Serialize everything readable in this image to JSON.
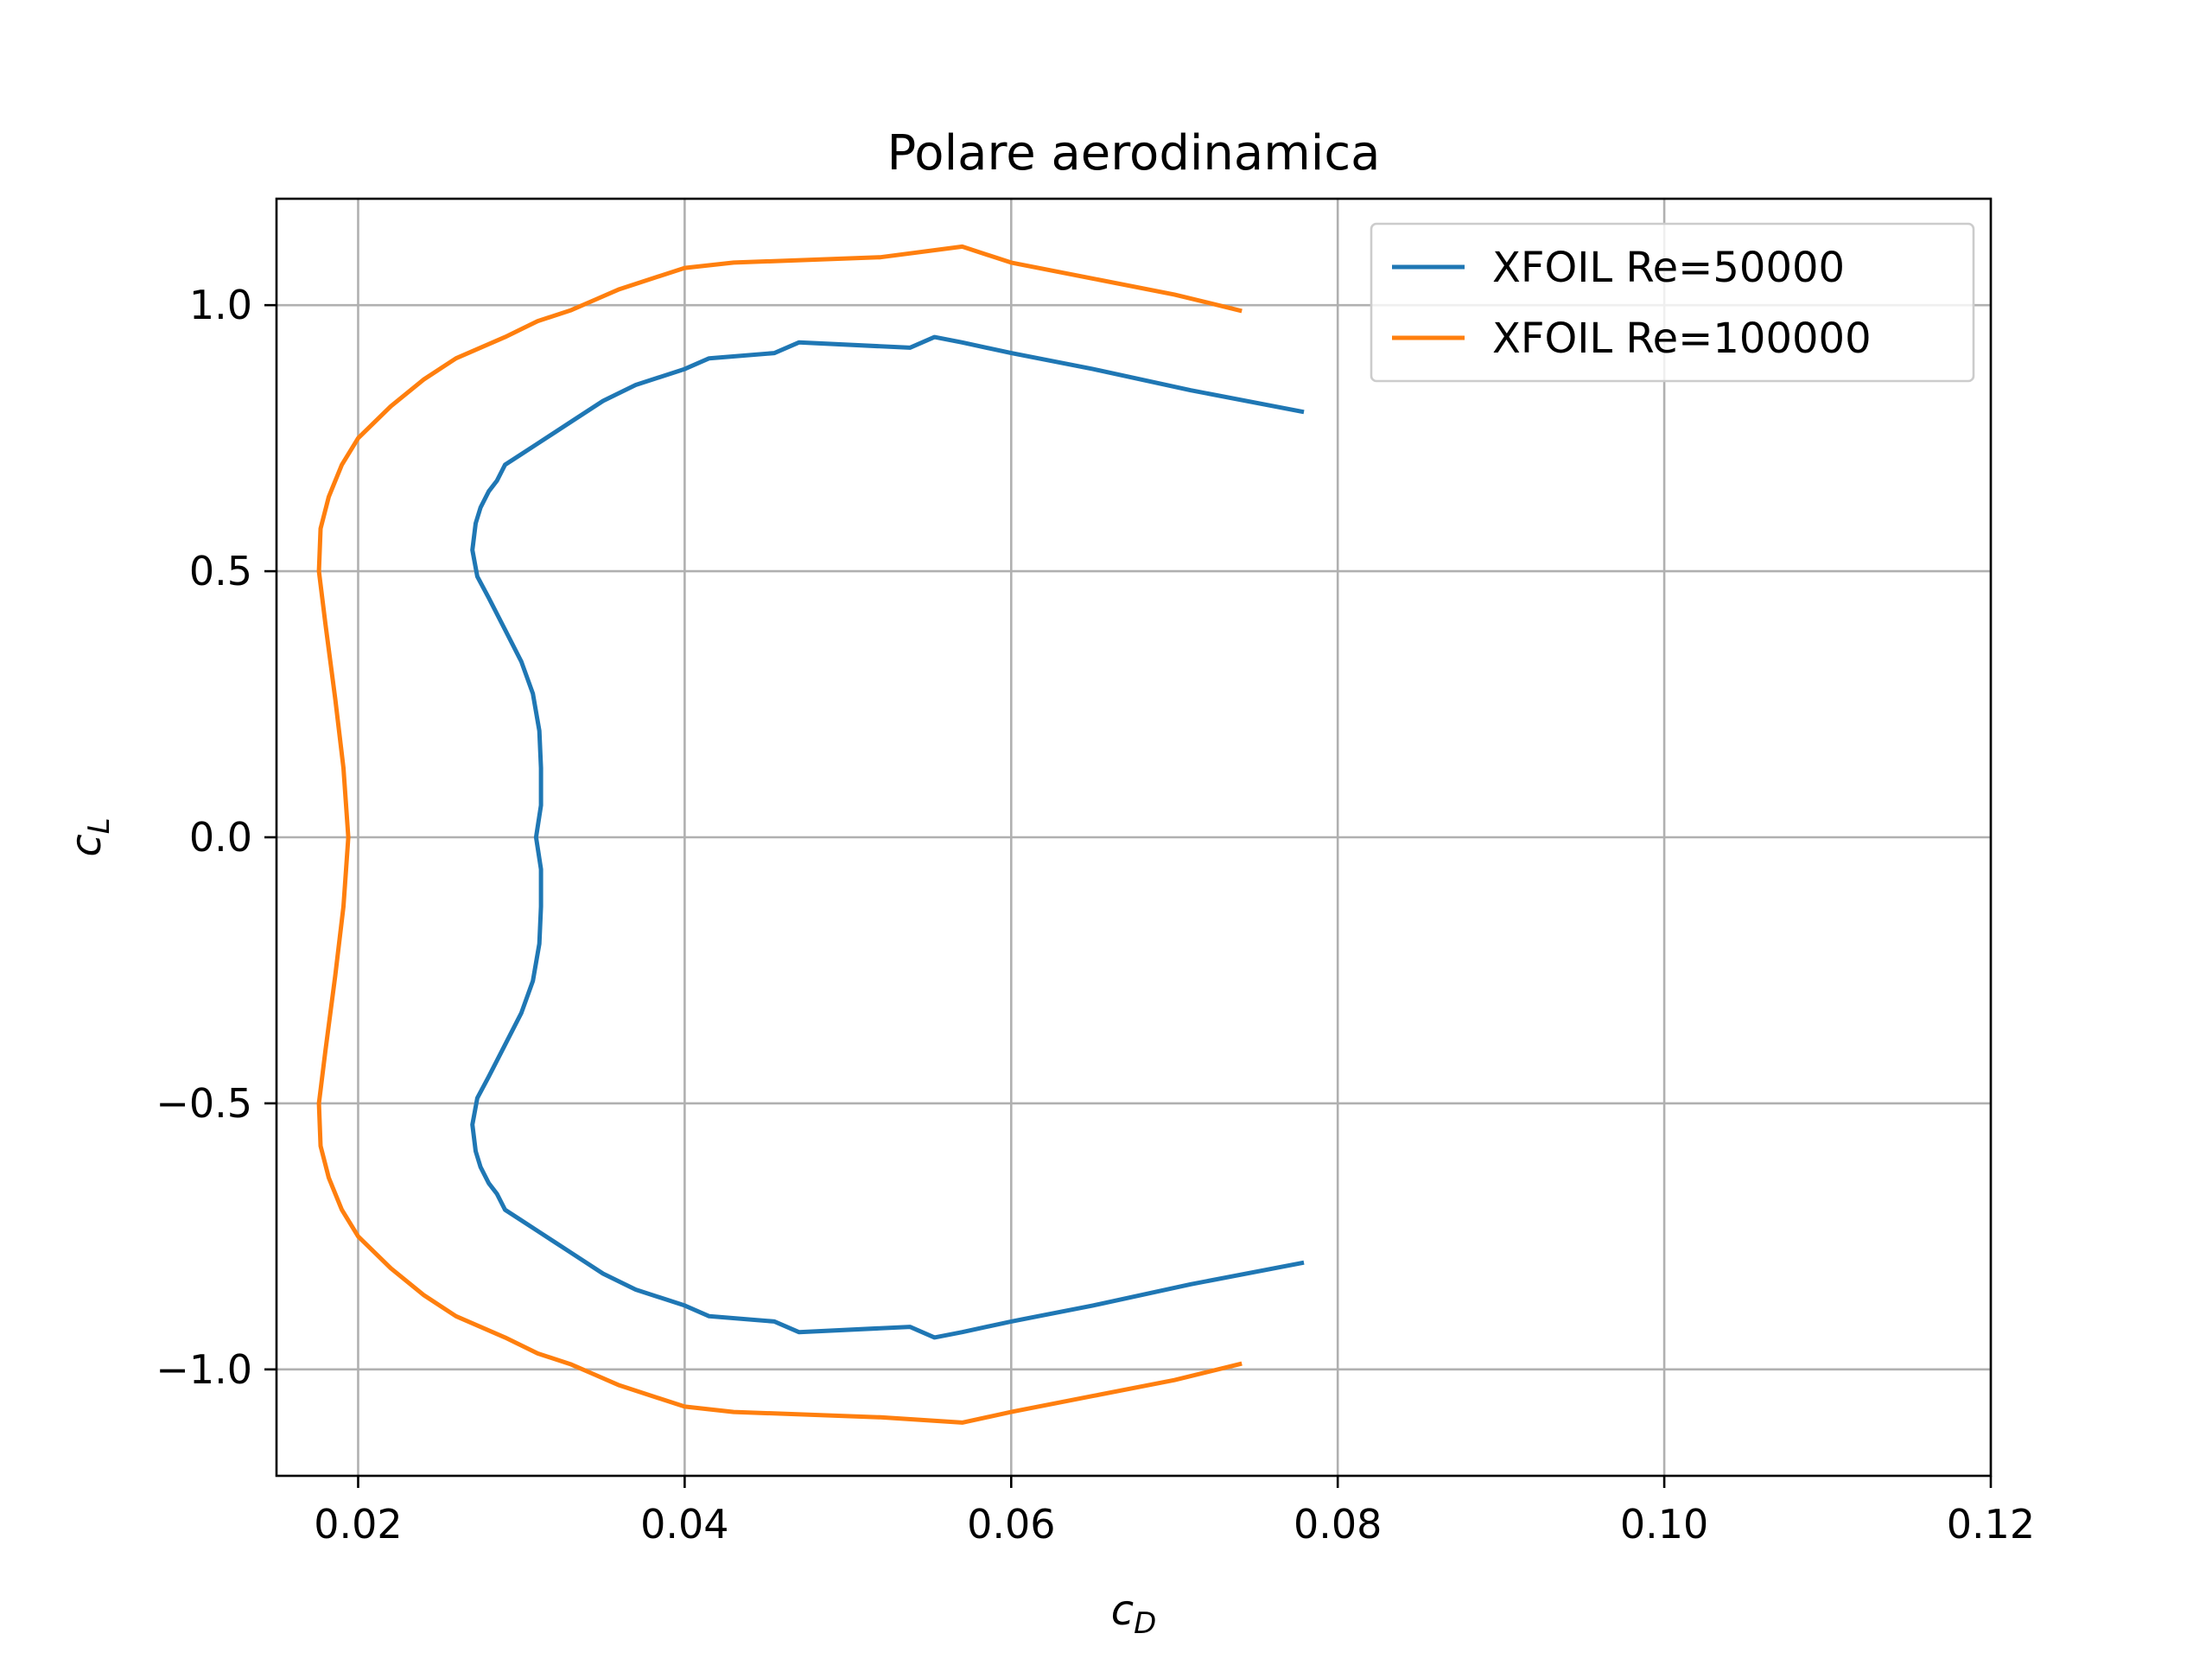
{
  "chart_data": {
    "type": "line",
    "title": "Polare aerodinamica",
    "xlabel_main": "c",
    "xlabel_sub": "D",
    "ylabel_main": "c",
    "ylabel_sub": "L",
    "xlim": [
      0.015,
      0.12
    ],
    "ylim": [
      -1.2,
      1.2
    ],
    "xticks": [
      0.02,
      0.04,
      0.06,
      0.08,
      0.1,
      0.12
    ],
    "xtick_labels": [
      "0.02",
      "0.04",
      "0.06",
      "0.08",
      "0.10",
      "0.12"
    ],
    "yticks": [
      -1.0,
      -0.5,
      0.0,
      0.5,
      1.0
    ],
    "ytick_labels": [
      "−1.0",
      "−0.5",
      "0.0",
      "0.5",
      "1.0"
    ],
    "grid": true,
    "legend_position": "top-right",
    "series": [
      {
        "name": "XFOIL Re=50000",
        "color": "#1f77b4",
        "points": [
          [
            0.0778,
            -0.8
          ],
          [
            0.071,
            -0.84
          ],
          [
            0.065,
            -0.88
          ],
          [
            0.06,
            -0.91
          ],
          [
            0.057,
            -0.93
          ],
          [
            0.0553,
            -0.94
          ],
          [
            0.0538,
            -0.92
          ],
          [
            0.047,
            -0.93
          ],
          [
            0.0455,
            -0.91
          ],
          [
            0.0415,
            -0.9
          ],
          [
            0.04,
            -0.88
          ],
          [
            0.037,
            -0.85
          ],
          [
            0.035,
            -0.82
          ],
          [
            0.033,
            -0.78
          ],
          [
            0.032,
            -0.76
          ],
          [
            0.031,
            -0.74
          ],
          [
            0.03,
            -0.72
          ],
          [
            0.029,
            -0.7
          ],
          [
            0.0285,
            -0.67
          ],
          [
            0.028,
            -0.65
          ],
          [
            0.0275,
            -0.62
          ],
          [
            0.0272,
            -0.59
          ],
          [
            0.027,
            -0.54
          ],
          [
            0.0273,
            -0.49
          ],
          [
            0.028,
            -0.45
          ],
          [
            0.029,
            -0.39
          ],
          [
            0.03,
            -0.33
          ],
          [
            0.0307,
            -0.27
          ],
          [
            0.0311,
            -0.2
          ],
          [
            0.0312,
            -0.13
          ],
          [
            0.0312,
            -0.06
          ],
          [
            0.0309,
            0.0
          ],
          [
            0.0312,
            0.06
          ],
          [
            0.0312,
            0.13
          ],
          [
            0.0311,
            0.2
          ],
          [
            0.0307,
            0.27
          ],
          [
            0.03,
            0.33
          ],
          [
            0.029,
            0.39
          ],
          [
            0.028,
            0.45
          ],
          [
            0.0273,
            0.49
          ],
          [
            0.027,
            0.54
          ],
          [
            0.0272,
            0.59
          ],
          [
            0.0275,
            0.62
          ],
          [
            0.028,
            0.65
          ],
          [
            0.0285,
            0.67
          ],
          [
            0.029,
            0.7
          ],
          [
            0.03,
            0.72
          ],
          [
            0.031,
            0.74
          ],
          [
            0.032,
            0.76
          ],
          [
            0.033,
            0.78
          ],
          [
            0.035,
            0.82
          ],
          [
            0.037,
            0.85
          ],
          [
            0.04,
            0.88
          ],
          [
            0.0415,
            0.9
          ],
          [
            0.0455,
            0.91
          ],
          [
            0.047,
            0.93
          ],
          [
            0.0538,
            0.92
          ],
          [
            0.0553,
            0.94
          ],
          [
            0.057,
            0.93
          ],
          [
            0.06,
            0.91
          ],
          [
            0.065,
            0.88
          ],
          [
            0.071,
            0.84
          ],
          [
            0.0778,
            0.8
          ]
        ]
      },
      {
        "name": "XFOIL Re=100000",
        "color": "#ff7f0e",
        "points": [
          [
            0.074,
            -0.99
          ],
          [
            0.07,
            -1.02
          ],
          [
            0.065,
            -1.05
          ],
          [
            0.06,
            -1.08
          ],
          [
            0.057,
            -1.1
          ],
          [
            0.052,
            -1.09
          ],
          [
            0.043,
            -1.08
          ],
          [
            0.04,
            -1.07
          ],
          [
            0.038,
            -1.05
          ],
          [
            0.036,
            -1.03
          ],
          [
            0.0345,
            -1.01
          ],
          [
            0.033,
            -0.99
          ],
          [
            0.031,
            -0.97
          ],
          [
            0.029,
            -0.94
          ],
          [
            0.026,
            -0.9
          ],
          [
            0.024,
            -0.86
          ],
          [
            0.022,
            -0.81
          ],
          [
            0.02,
            -0.75
          ],
          [
            0.019,
            -0.7
          ],
          [
            0.0182,
            -0.64
          ],
          [
            0.0177,
            -0.58
          ],
          [
            0.0176,
            -0.5
          ],
          [
            0.018,
            -0.4
          ],
          [
            0.0186,
            -0.26
          ],
          [
            0.0191,
            -0.13
          ],
          [
            0.0194,
            0.0
          ],
          [
            0.0191,
            0.13
          ],
          [
            0.0186,
            0.26
          ],
          [
            0.018,
            0.4
          ],
          [
            0.0176,
            0.5
          ],
          [
            0.0177,
            0.58
          ],
          [
            0.0182,
            0.64
          ],
          [
            0.019,
            0.7
          ],
          [
            0.02,
            0.75
          ],
          [
            0.022,
            0.81
          ],
          [
            0.024,
            0.86
          ],
          [
            0.026,
            0.9
          ],
          [
            0.029,
            0.94
          ],
          [
            0.031,
            0.97
          ],
          [
            0.033,
            0.99
          ],
          [
            0.0345,
            1.01
          ],
          [
            0.036,
            1.03
          ],
          [
            0.038,
            1.05
          ],
          [
            0.04,
            1.07
          ],
          [
            0.043,
            1.08
          ],
          [
            0.052,
            1.09
          ],
          [
            0.057,
            1.11
          ],
          [
            0.06,
            1.08
          ],
          [
            0.065,
            1.05
          ],
          [
            0.07,
            1.02
          ],
          [
            0.074,
            0.99
          ]
        ]
      }
    ]
  }
}
